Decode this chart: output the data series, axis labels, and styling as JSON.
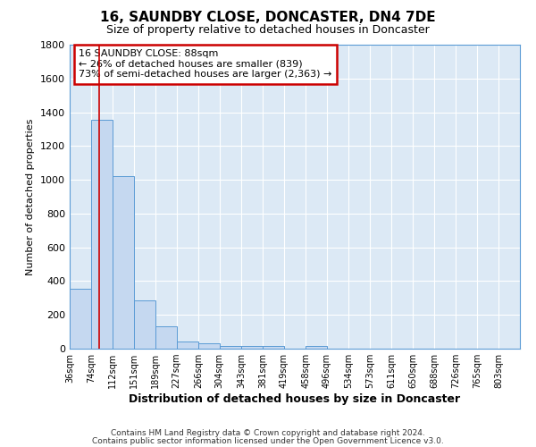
{
  "title": "16, SAUNDBY CLOSE, DONCASTER, DN4 7DE",
  "subtitle": "Size of property relative to detached houses in Doncaster",
  "xlabel": "Distribution of detached houses by size in Doncaster",
  "ylabel": "Number of detached properties",
  "bin_labels": [
    "36sqm",
    "74sqm",
    "112sqm",
    "151sqm",
    "189sqm",
    "227sqm",
    "266sqm",
    "304sqm",
    "343sqm",
    "381sqm",
    "419sqm",
    "458sqm",
    "496sqm",
    "534sqm",
    "573sqm",
    "611sqm",
    "650sqm",
    "688sqm",
    "726sqm",
    "765sqm",
    "803sqm"
  ],
  "bar_values": [
    355,
    1355,
    1020,
    285,
    130,
    45,
    32,
    17,
    17,
    15,
    0,
    18,
    0,
    0,
    0,
    0,
    0,
    0,
    0,
    0,
    0
  ],
  "bar_color": "#c5d8f0",
  "bar_edge_color": "#5b9bd5",
  "bin_edges": [
    36,
    74,
    112,
    151,
    189,
    227,
    266,
    304,
    343,
    381,
    419,
    458,
    496,
    534,
    573,
    611,
    650,
    688,
    726,
    765,
    803,
    841
  ],
  "property_line_x": 88,
  "property_line_color": "#cc0000",
  "ylim": [
    0,
    1800
  ],
  "yticks": [
    0,
    200,
    400,
    600,
    800,
    1000,
    1200,
    1400,
    1600,
    1800
  ],
  "annotation_line1": "16 SAUNDBY CLOSE: 88sqm",
  "annotation_line2": "← 26% of detached houses are smaller (839)",
  "annotation_line3": "73% of semi-detached houses are larger (2,363) →",
  "footer1": "Contains HM Land Registry data © Crown copyright and database right 2024.",
  "footer2": "Contains public sector information licensed under the Open Government Licence v3.0.",
  "plot_bg_color": "#dce9f5",
  "fig_bg_color": "#ffffff",
  "grid_color": "#ffffff",
  "ann_box_color": "#cc0000",
  "ann_box_bg": "#ffffff"
}
